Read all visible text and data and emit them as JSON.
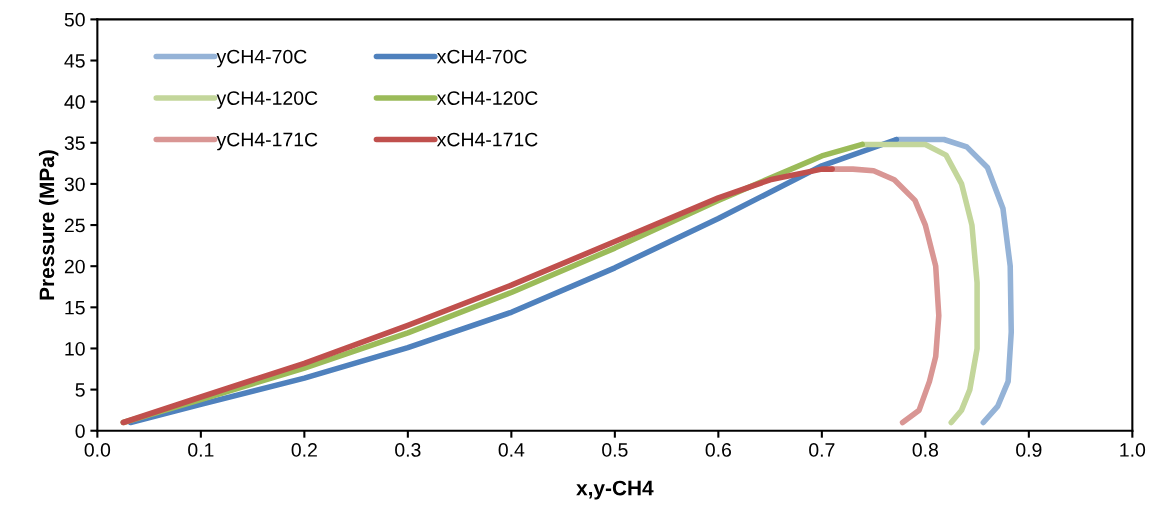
{
  "chart_data": {
    "type": "line",
    "xlabel": "x,y-CH4",
    "ylabel": "Pressure (MPa)",
    "xlim": [
      0,
      1
    ],
    "ylim": [
      0,
      50
    ],
    "xticks": [
      {
        "value": 0,
        "label": "0.0"
      },
      {
        "value": 0.1,
        "label": "0.1"
      },
      {
        "value": 0.2,
        "label": "0.2"
      },
      {
        "value": 0.3,
        "label": "0.3"
      },
      {
        "value": 0.4,
        "label": "0.4"
      },
      {
        "value": 0.5,
        "label": "0.5"
      },
      {
        "value": 0.6,
        "label": "0.6"
      },
      {
        "value": 0.7,
        "label": "0.7"
      },
      {
        "value": 0.8,
        "label": "0.8"
      },
      {
        "value": 0.9,
        "label": "0.9"
      },
      {
        "value": 1,
        "label": "1.0"
      }
    ],
    "yticks": [
      0,
      5,
      10,
      15,
      20,
      25,
      30,
      35,
      40,
      45,
      50
    ],
    "grid": false,
    "legend": "top left",
    "marker": "none",
    "line_style": "solid",
    "series": [
      {
        "name": "yCH4-70C",
        "color": "#95b3d7",
        "x": [
          0.772,
          0.818,
          0.84,
          0.86,
          0.875,
          0.882,
          0.883,
          0.88,
          0.87,
          0.856
        ],
        "values": [
          35.4,
          35.4,
          34.5,
          32,
          27,
          20,
          12,
          6,
          3,
          1
        ]
      },
      {
        "name": "xCH4-70C",
        "color": "#4f81bd",
        "x": [
          0.032,
          0.1,
          0.2,
          0.3,
          0.4,
          0.5,
          0.6,
          0.7,
          0.772
        ],
        "values": [
          1,
          3.2,
          6.4,
          10.1,
          14.4,
          19.8,
          25.8,
          32.2,
          35.4
        ]
      },
      {
        "name": "yCH4-120C",
        "color": "#c3d69b",
        "x": [
          0.739,
          0.8,
          0.82,
          0.835,
          0.845,
          0.85,
          0.85,
          0.843,
          0.835,
          0.825
        ],
        "values": [
          34.8,
          34.8,
          33.5,
          30,
          25,
          18,
          10,
          5,
          2.5,
          1
        ]
      },
      {
        "name": "xCH4-120C",
        "color": "#9bbb59",
        "x": [
          0.025,
          0.1,
          0.2,
          0.3,
          0.4,
          0.5,
          0.6,
          0.7,
          0.739
        ],
        "values": [
          1,
          3.8,
          7.6,
          11.9,
          16.8,
          22.2,
          28.0,
          33.4,
          34.8
        ]
      },
      {
        "name": "yCH4-171C",
        "color": "#d99694",
        "x": [
          0.71,
          0.73,
          0.75,
          0.77,
          0.79,
          0.8,
          0.81,
          0.813,
          0.81,
          0.804,
          0.794,
          0.778
        ],
        "values": [
          31.8,
          31.8,
          31.6,
          30.5,
          28,
          25,
          20,
          14,
          9,
          6,
          2.5,
          1
        ]
      },
      {
        "name": "xCH4-171C",
        "color": "#c0504d",
        "x": [
          0.025,
          0.1,
          0.2,
          0.3,
          0.4,
          0.5,
          0.6,
          0.65,
          0.7,
          0.71
        ],
        "values": [
          1,
          4.1,
          8.2,
          12.8,
          17.7,
          23.0,
          28.3,
          30.5,
          31.8,
          31.8
        ]
      }
    ]
  }
}
